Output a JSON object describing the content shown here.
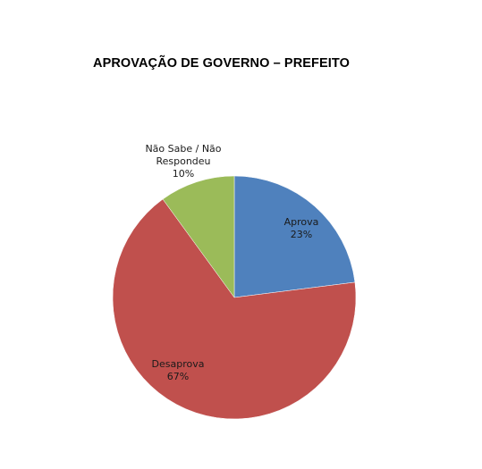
{
  "title": "APROVAÇÃO DE GOVERNO – PREFEITO",
  "chart_data": {
    "type": "pie",
    "title": "APROVAÇÃO DE GOVERNO – PREFEITO",
    "start_angle": "12 o'clock",
    "direction": "clockwise",
    "legend": "none",
    "slices": [
      {
        "key": "aprova",
        "label_lines": [
          "Aprova"
        ],
        "value": 23,
        "value_label": "23%",
        "color": "#4f81bd"
      },
      {
        "key": "desaprova",
        "label_lines": [
          "Desaprova"
        ],
        "value": 67,
        "value_label": "67%",
        "color": "#c0504d"
      },
      {
        "key": "nao-sabe",
        "label_lines": [
          "Não Sabe / Não",
          "Respondeu"
        ],
        "value": 10,
        "value_label": "10%",
        "color": "#9bbb59"
      }
    ]
  }
}
